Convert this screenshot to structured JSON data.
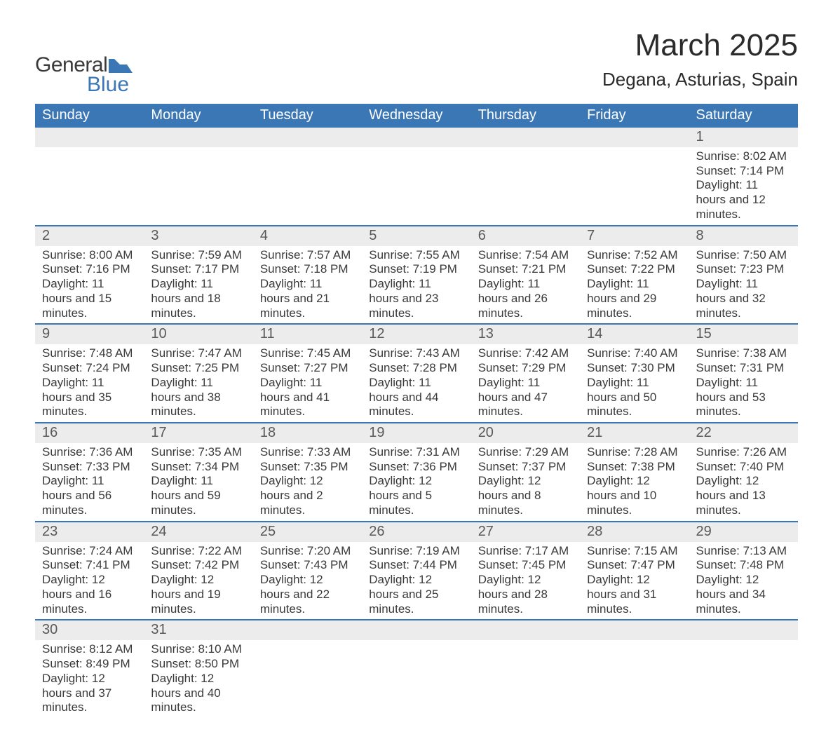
{
  "logo": {
    "text_general": "General",
    "text_blue": "Blue",
    "accent_color": "#3b76b5",
    "text_color": "#3a3a3a"
  },
  "header": {
    "month_title": "March 2025",
    "location": "Degana, Asturias, Spain"
  },
  "calendar": {
    "header_bg": "#3b76b5",
    "header_fg": "#ffffff",
    "numrow_bg": "#ececec",
    "border_color": "#3b76b5",
    "text_color": "#3a3a3a",
    "day_headers": [
      "Sunday",
      "Monday",
      "Tuesday",
      "Wednesday",
      "Thursday",
      "Friday",
      "Saturday"
    ],
    "first_weekday_index": 6,
    "weeks": [
      [
        null,
        null,
        null,
        null,
        null,
        null,
        {
          "n": "1",
          "sunrise": "8:02 AM",
          "sunset": "7:14 PM",
          "dl_h": "11",
          "dl_m": "12"
        }
      ],
      [
        {
          "n": "2",
          "sunrise": "8:00 AM",
          "sunset": "7:16 PM",
          "dl_h": "11",
          "dl_m": "15"
        },
        {
          "n": "3",
          "sunrise": "7:59 AM",
          "sunset": "7:17 PM",
          "dl_h": "11",
          "dl_m": "18"
        },
        {
          "n": "4",
          "sunrise": "7:57 AM",
          "sunset": "7:18 PM",
          "dl_h": "11",
          "dl_m": "21"
        },
        {
          "n": "5",
          "sunrise": "7:55 AM",
          "sunset": "7:19 PM",
          "dl_h": "11",
          "dl_m": "23"
        },
        {
          "n": "6",
          "sunrise": "7:54 AM",
          "sunset": "7:21 PM",
          "dl_h": "11",
          "dl_m": "26"
        },
        {
          "n": "7",
          "sunrise": "7:52 AM",
          "sunset": "7:22 PM",
          "dl_h": "11",
          "dl_m": "29"
        },
        {
          "n": "8",
          "sunrise": "7:50 AM",
          "sunset": "7:23 PM",
          "dl_h": "11",
          "dl_m": "32"
        }
      ],
      [
        {
          "n": "9",
          "sunrise": "7:48 AM",
          "sunset": "7:24 PM",
          "dl_h": "11",
          "dl_m": "35"
        },
        {
          "n": "10",
          "sunrise": "7:47 AM",
          "sunset": "7:25 PM",
          "dl_h": "11",
          "dl_m": "38"
        },
        {
          "n": "11",
          "sunrise": "7:45 AM",
          "sunset": "7:27 PM",
          "dl_h": "11",
          "dl_m": "41"
        },
        {
          "n": "12",
          "sunrise": "7:43 AM",
          "sunset": "7:28 PM",
          "dl_h": "11",
          "dl_m": "44"
        },
        {
          "n": "13",
          "sunrise": "7:42 AM",
          "sunset": "7:29 PM",
          "dl_h": "11",
          "dl_m": "47"
        },
        {
          "n": "14",
          "sunrise": "7:40 AM",
          "sunset": "7:30 PM",
          "dl_h": "11",
          "dl_m": "50"
        },
        {
          "n": "15",
          "sunrise": "7:38 AM",
          "sunset": "7:31 PM",
          "dl_h": "11",
          "dl_m": "53"
        }
      ],
      [
        {
          "n": "16",
          "sunrise": "7:36 AM",
          "sunset": "7:33 PM",
          "dl_h": "11",
          "dl_m": "56"
        },
        {
          "n": "17",
          "sunrise": "7:35 AM",
          "sunset": "7:34 PM",
          "dl_h": "11",
          "dl_m": "59"
        },
        {
          "n": "18",
          "sunrise": "7:33 AM",
          "sunset": "7:35 PM",
          "dl_h": "12",
          "dl_m": "2"
        },
        {
          "n": "19",
          "sunrise": "7:31 AM",
          "sunset": "7:36 PM",
          "dl_h": "12",
          "dl_m": "5"
        },
        {
          "n": "20",
          "sunrise": "7:29 AM",
          "sunset": "7:37 PM",
          "dl_h": "12",
          "dl_m": "8"
        },
        {
          "n": "21",
          "sunrise": "7:28 AM",
          "sunset": "7:38 PM",
          "dl_h": "12",
          "dl_m": "10"
        },
        {
          "n": "22",
          "sunrise": "7:26 AM",
          "sunset": "7:40 PM",
          "dl_h": "12",
          "dl_m": "13"
        }
      ],
      [
        {
          "n": "23",
          "sunrise": "7:24 AM",
          "sunset": "7:41 PM",
          "dl_h": "12",
          "dl_m": "16"
        },
        {
          "n": "24",
          "sunrise": "7:22 AM",
          "sunset": "7:42 PM",
          "dl_h": "12",
          "dl_m": "19"
        },
        {
          "n": "25",
          "sunrise": "7:20 AM",
          "sunset": "7:43 PM",
          "dl_h": "12",
          "dl_m": "22"
        },
        {
          "n": "26",
          "sunrise": "7:19 AM",
          "sunset": "7:44 PM",
          "dl_h": "12",
          "dl_m": "25"
        },
        {
          "n": "27",
          "sunrise": "7:17 AM",
          "sunset": "7:45 PM",
          "dl_h": "12",
          "dl_m": "28"
        },
        {
          "n": "28",
          "sunrise": "7:15 AM",
          "sunset": "7:47 PM",
          "dl_h": "12",
          "dl_m": "31"
        },
        {
          "n": "29",
          "sunrise": "7:13 AM",
          "sunset": "7:48 PM",
          "dl_h": "12",
          "dl_m": "34"
        }
      ],
      [
        {
          "n": "30",
          "sunrise": "8:12 AM",
          "sunset": "8:49 PM",
          "dl_h": "12",
          "dl_m": "37"
        },
        {
          "n": "31",
          "sunrise": "8:10 AM",
          "sunset": "8:50 PM",
          "dl_h": "12",
          "dl_m": "40"
        },
        null,
        null,
        null,
        null,
        null
      ]
    ]
  },
  "labels": {
    "sunrise": "Sunrise:",
    "sunset": "Sunset:",
    "daylight_prefix": "Daylight:",
    "hours_word": "hours",
    "and_word": "and",
    "minutes_word": "minutes."
  }
}
